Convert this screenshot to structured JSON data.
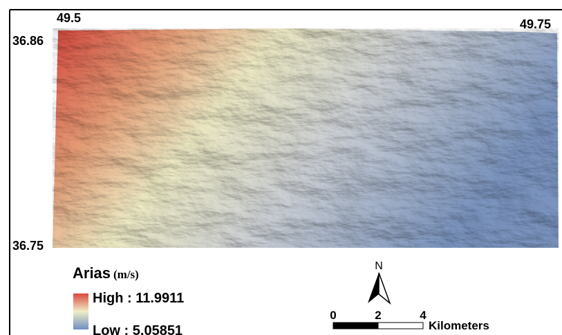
{
  "map": {
    "coordinates": {
      "top_left_lon": "49.5",
      "top_right_lon": "49.75",
      "top_lat": "36.86",
      "bottom_lat": "36.75"
    },
    "legend": {
      "title": "Arias",
      "unit": "(m/s)",
      "high": "High : 11.9911",
      "low": "Low : 5.05851"
    },
    "north_arrow": "N",
    "scale_bar": {
      "labels": [
        "0",
        "2",
        "4"
      ],
      "unit": "Kilometers"
    }
  }
}
